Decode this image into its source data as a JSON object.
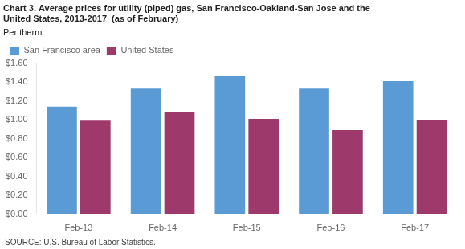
{
  "chart_data": {
    "type": "bar",
    "title": [
      "Chart 3. Average prices for utility (piped) gas, San Francisco-Oakland-San Jose and the",
      "United States, 2013-2017  (as of February)"
    ],
    "subtitle": "Per therm",
    "annotations": [
      "SOURCE: U.S. Bureau of Labor Statistics."
    ],
    "categories": [
      "Feb-13",
      "Feb-14",
      "Feb-15",
      "Feb-16",
      "Feb-17"
    ],
    "series": [
      {
        "name": "San Francisco area",
        "color": "#5B9BD5",
        "values": [
          1.14,
          1.33,
          1.46,
          1.33,
          1.41
        ]
      },
      {
        "name": "United States",
        "color": "#9E3A6B",
        "values": [
          0.99,
          1.08,
          1.01,
          0.89,
          1.0
        ]
      }
    ],
    "ylim": [
      0.0,
      1.6
    ],
    "yticks": [
      {
        "value": 0.0,
        "label": "$0.00"
      },
      {
        "value": 0.2,
        "label": "$0.20"
      },
      {
        "value": 0.4,
        "label": "$0.40"
      },
      {
        "value": 0.6,
        "label": "$0.60"
      },
      {
        "value": 0.8,
        "label": "$0.80"
      },
      {
        "value": 1.0,
        "label": "$1.00"
      },
      {
        "value": 1.2,
        "label": "$1.20"
      },
      {
        "value": 1.4,
        "label": "$1.40"
      },
      {
        "value": 1.6,
        "label": "$1.60"
      }
    ],
    "grid": false,
    "legend": "upper left"
  }
}
